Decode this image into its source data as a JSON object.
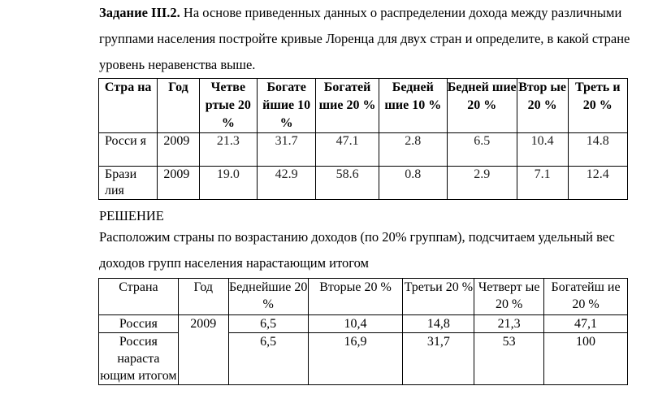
{
  "task": {
    "label": "Задание III.2.",
    "text": " На основе приведенных данных о распределении дохода между различными группами населения постройте кривые Лоренца для двух стран и определите, в какой стране уровень неравенства выше."
  },
  "table1": {
    "headers": [
      "Стра на",
      "Год",
      "Четве ртые 20 %",
      "Богате йшие 10 %",
      "Богатей шие 20 %",
      "Бедней шие 10 %",
      "Бедней шие 20 %",
      "Втор ые 20 %",
      "Треть и 20 %"
    ],
    "rows": [
      [
        "Росси я",
        "2009",
        "21.3",
        "31.7",
        "47.1",
        "2.8",
        "6.5",
        "10.4",
        "14.8"
      ],
      [
        "Брази лия",
        "2009",
        "19.0",
        "42.9",
        "58.6",
        "0.8",
        "2.9",
        "7.1",
        "12.4"
      ]
    ]
  },
  "solution": {
    "heading": "РЕШЕНИЕ",
    "text": "Расположим страны по возрастанию доходов (по 20% группам), подсчитаем удельный вес доходов групп населения нарастающим итогом"
  },
  "table2": {
    "headers": [
      "Страна",
      "Год",
      "Беднейшие 20 %",
      "Вторые 20 %",
      "Третьи 20 %",
      "Четверт ые 20 %",
      "Богатейш ие 20 %"
    ],
    "rows": [
      [
        "Россия",
        "2009",
        "6,5",
        "10,4",
        "14,8",
        "21,3",
        "47,1"
      ],
      [
        "Россия наpаста ющим итогом",
        "",
        "6,5",
        "16,9",
        "31,7",
        "53",
        "100"
      ]
    ]
  }
}
